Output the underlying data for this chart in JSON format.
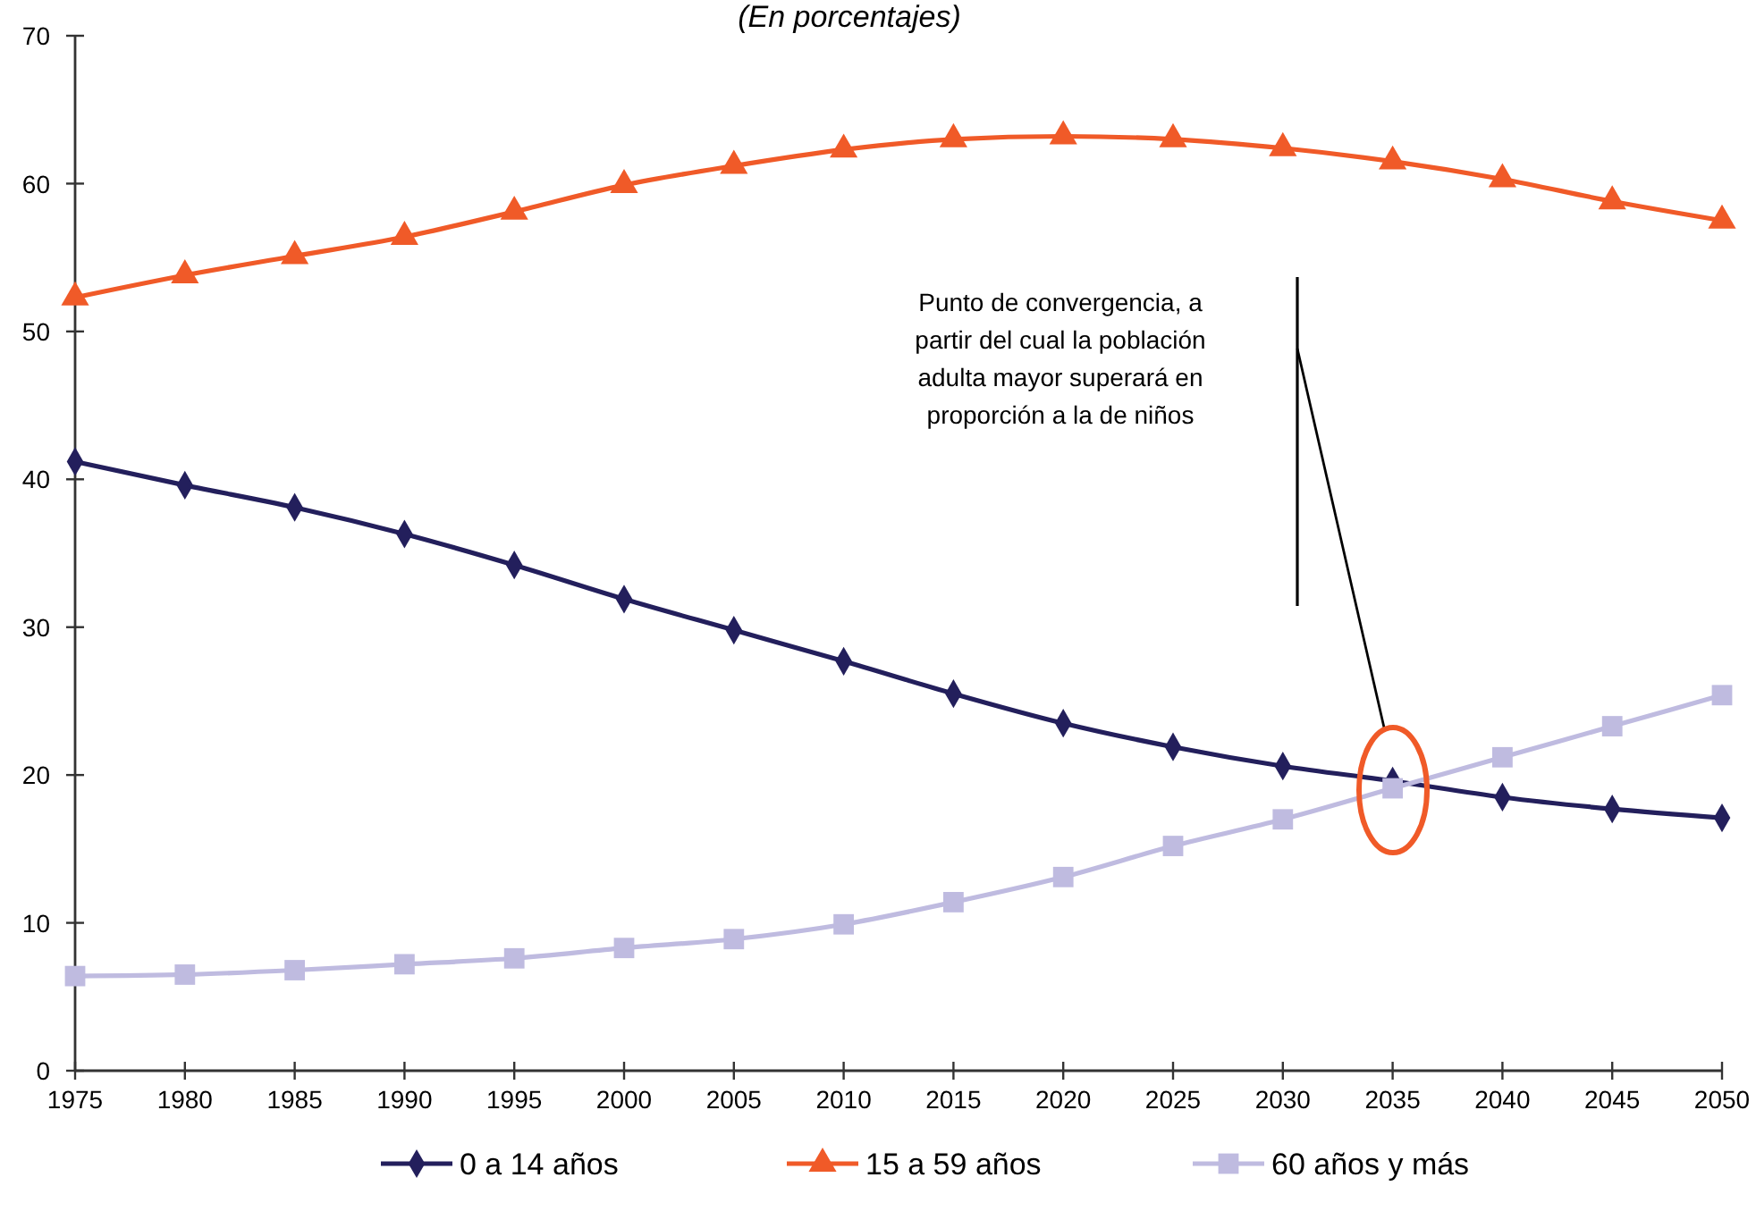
{
  "chart_data": {
    "type": "line",
    "title": "(En porcentajes)",
    "x": [
      1975,
      1980,
      1985,
      1990,
      1995,
      2000,
      2005,
      2010,
      2015,
      2020,
      2025,
      2030,
      2035,
      2040,
      2045,
      2050
    ],
    "xlim": [
      1975,
      2050
    ],
    "xticks": [
      1975,
      1980,
      1985,
      1990,
      1995,
      2000,
      2005,
      2010,
      2015,
      2020,
      2025,
      2030,
      2035,
      2040,
      2045,
      2050
    ],
    "ylim": [
      0,
      70
    ],
    "yticks": [
      0,
      10,
      20,
      30,
      40,
      50,
      60,
      70
    ],
    "series": [
      {
        "name": "0 a 14 años",
        "color": "#231f5c",
        "marker": "diamond",
        "values": [
          41.2,
          39.6,
          38.1,
          36.3,
          34.2,
          31.9,
          29.8,
          27.7,
          25.5,
          23.5,
          21.9,
          20.6,
          19.6,
          18.5,
          17.7,
          17.1
        ]
      },
      {
        "name": "15 a 59 años",
        "color": "#f05a28",
        "marker": "triangle",
        "values": [
          52.3,
          53.8,
          55.1,
          56.4,
          58.1,
          59.9,
          61.2,
          62.3,
          63.0,
          63.2,
          63.0,
          62.4,
          61.5,
          60.3,
          58.8,
          57.5
        ]
      },
      {
        "name": "60 años y más",
        "color": "#bfbbe0",
        "marker": "square",
        "values": [
          6.4,
          6.5,
          6.8,
          7.2,
          7.6,
          8.3,
          8.9,
          9.9,
          11.4,
          13.1,
          15.2,
          17.0,
          19.1,
          21.2,
          23.3,
          25.4
        ]
      }
    ],
    "legend": "bottom",
    "annotations": [
      "Punto de convergencia, a\npartir del cual la población\nadulta mayor superará en\nproporción a la de niños"
    ]
  }
}
